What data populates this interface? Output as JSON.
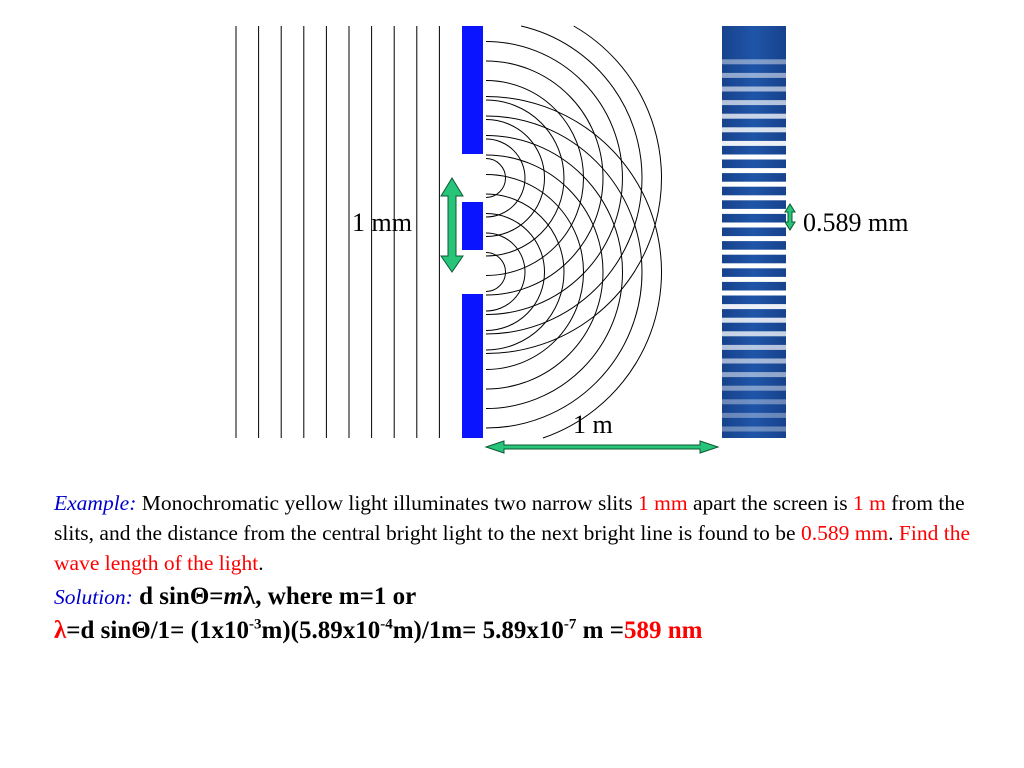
{
  "diagram": {
    "slit_separation_label": "1 mm",
    "screen_distance_label": "1 m",
    "fringe_spacing_label": "0.589 mm",
    "colors": {
      "barrier": "#0a14ff",
      "screen": "#1e4f9e",
      "screen_bright": "#ffffff",
      "arrow": "#27c47a",
      "arrow_outline": "#0b5a33",
      "wave_lines": "#000000"
    },
    "plane_wavefront_count": 10,
    "circular_wavefronts_per_slit": 9
  },
  "example": {
    "label": "Example:",
    "text_1": "Monochromatic yellow light illuminates two narrow slits",
    "slit_value": "1 mm",
    "text_2": "apart the screen is",
    "distance_value": "1 m",
    "text_3": "from the slits, and the distance from the central bright light to the next bright line is found to be",
    "spacing_value": "0.589 mm",
    "text_4": ".",
    "question": "Find the wave length of the light",
    "text_5": "."
  },
  "solution": {
    "label": "Solution:",
    "line1_a": "d sinΘ=",
    "line1_m": "m",
    "line1_lambda": "λ",
    "line1_b": ", where m=1 or",
    "line2_lambda": "λ",
    "line2_a": "=d sinΘ/1= (1x10",
    "exp1": "-3",
    "line2_b": "m)(5.89x10",
    "exp2": "-4",
    "line2_c": "m)/1m= 5.89x10",
    "exp3": "-7",
    "line2_d": " m =",
    "answer": "589 nm"
  }
}
